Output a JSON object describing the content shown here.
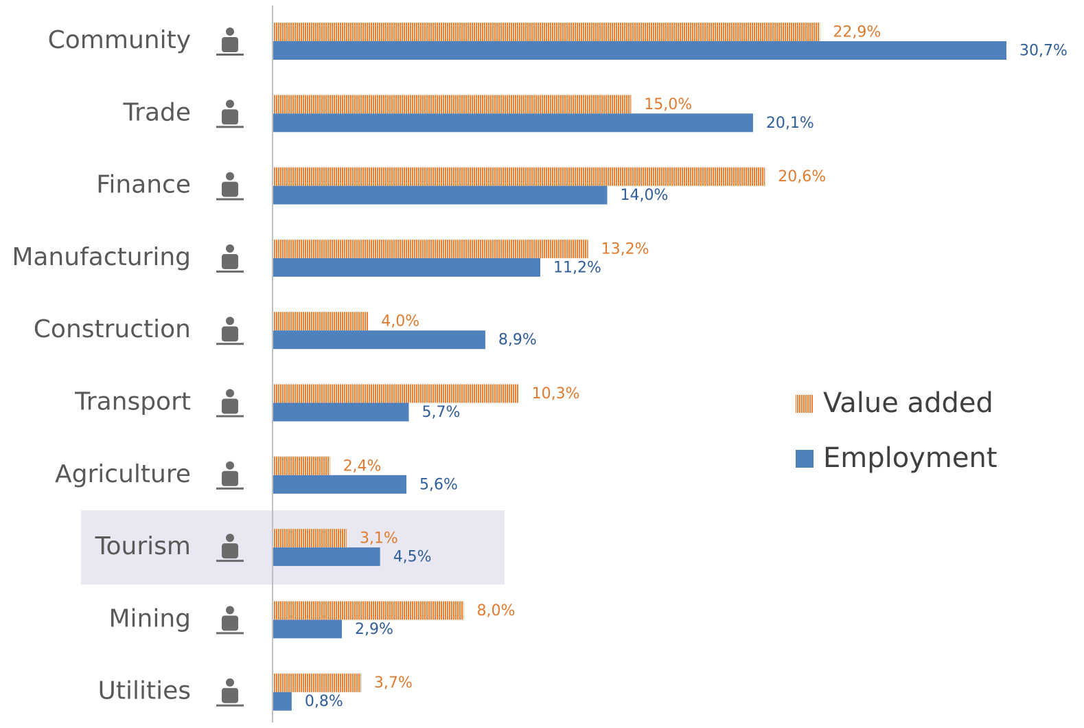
{
  "chart_data": {
    "type": "bar",
    "orientation": "horizontal",
    "categories": [
      "Community",
      "Trade",
      "Finance",
      "Manufacturing",
      "Construction",
      "Transport",
      "Agriculture",
      "Tourism",
      "Mining",
      "Utilities"
    ],
    "series": [
      {
        "name": "Value added",
        "color": "#ed7d31",
        "pattern": "vertical-stripes",
        "values": [
          22.9,
          15.0,
          20.6,
          13.2,
          4.0,
          10.3,
          2.4,
          3.1,
          8.0,
          3.7
        ],
        "value_labels": [
          "22,9%",
          "15,0%",
          "20,6%",
          "13,2%",
          "4,0%",
          "10,3%",
          "2,4%",
          "3,1%",
          "8,0%",
          "3,7%"
        ]
      },
      {
        "name": "Employment",
        "color": "#4f81bd",
        "values": [
          30.7,
          20.1,
          14.0,
          11.2,
          8.9,
          5.7,
          5.6,
          4.5,
          2.9,
          0.8
        ],
        "value_labels": [
          "30,7%",
          "20,1%",
          "14,0%",
          "11,2%",
          "8,9%",
          "5,7%",
          "5,6%",
          "4,5%",
          "2,9%",
          "0,8%"
        ]
      }
    ],
    "xlim": [
      0,
      34
    ],
    "highlight": "Tourism",
    "legend": "right"
  }
}
